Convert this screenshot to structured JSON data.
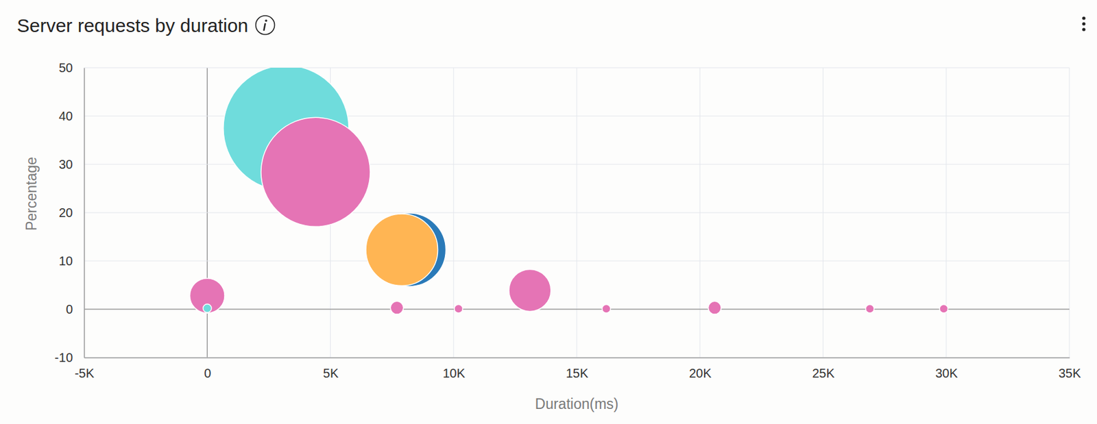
{
  "chart_data": {
    "type": "bubble",
    "title": "Server requests by duration",
    "x_label": "Duration(ms)",
    "y_label": "Percentage",
    "xlim": [
      -5000,
      35000
    ],
    "xticks": [
      {
        "value": -5000,
        "label": "-5K"
      },
      0,
      {
        "value": 5000,
        "label": "5K"
      },
      {
        "value": 10000,
        "label": "10K"
      },
      {
        "value": 15000,
        "label": "15K"
      },
      {
        "value": 20000,
        "label": "20K"
      },
      {
        "value": 25000,
        "label": "25K"
      },
      {
        "value": 30000,
        "label": "30K"
      },
      {
        "value": 35000,
        "label": "35K"
      }
    ],
    "ylim": [
      -10,
      50
    ],
    "yticks": [
      -10,
      0,
      10,
      20,
      30,
      40,
      50
    ],
    "grid": true,
    "series": [
      {
        "color": "#6fdcdc",
        "x": [
          3200,
          0
        ],
        "values": [
          37.5,
          0.2
        ],
        "size": [
          37.5,
          0.17
        ]
      },
      {
        "color": "#e574b5",
        "x": [
          4400,
          0,
          7700,
          10200,
          13100,
          16200,
          20600,
          26900,
          29900
        ],
        "values": [
          28.4,
          2.8,
          0.3,
          0.1,
          3.9,
          0.1,
          0.3,
          0.1,
          0.1
        ],
        "size": [
          28.4,
          2.9,
          0.4,
          0.17,
          4.2,
          0.17,
          0.4,
          0.17,
          0.17
        ]
      },
      {
        "color": "#2a7ab8",
        "x": [
          8200
        ],
        "values": [
          12.3
        ],
        "size": [
          12.8
        ]
      },
      {
        "color": "#ffb553",
        "x": [
          7900
        ],
        "values": [
          12.3
        ],
        "size": [
          12.3
        ]
      }
    ]
  }
}
